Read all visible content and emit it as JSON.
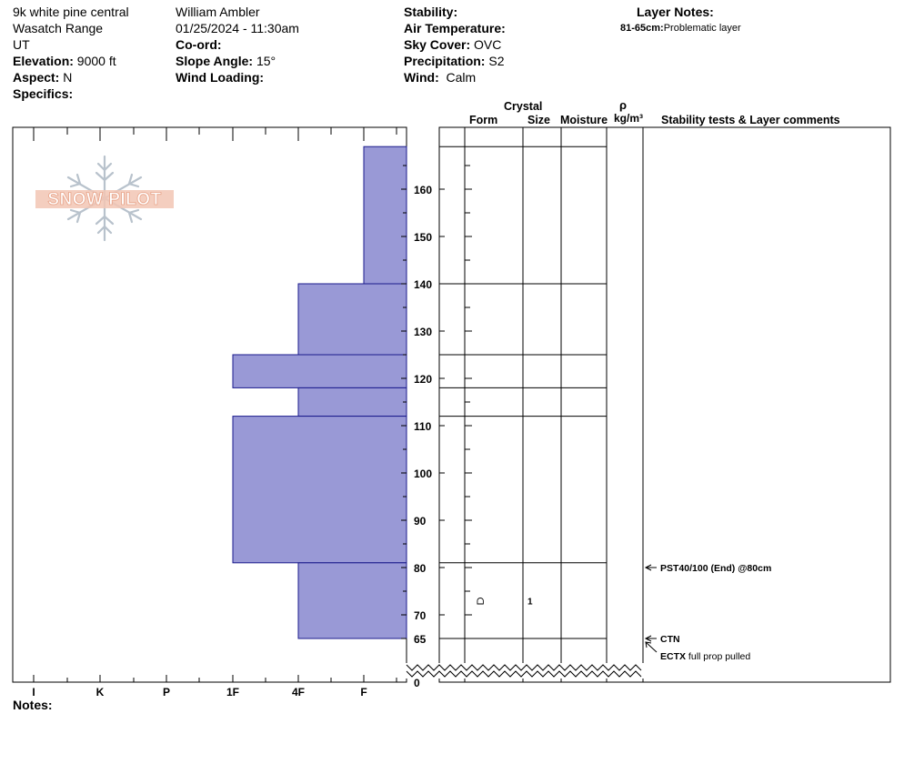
{
  "header": {
    "location": "9k white pine central",
    "range": "Wasatch Range",
    "state": "UT",
    "elevation_label": "Elevation:",
    "elevation_value": "9000 ft",
    "aspect_label": "Aspect:",
    "aspect_value": "N",
    "specifics_label": "Specifics:",
    "observer": "William Ambler",
    "datetime": "01/25/2024 - 11:30am",
    "coord_label": "Co-ord:",
    "slope_label": "Slope Angle:",
    "slope_value": "15°",
    "wind_loading_label": "Wind Loading:",
    "stability_label": "Stability:",
    "air_temp_label": "Air Temperature:",
    "sky_label": "Sky Cover:",
    "sky_value": "OVC",
    "precip_label": "Precipitation:",
    "precip_value": "S2",
    "wind_label": "Wind:",
    "wind_value": "Calm",
    "layer_notes_label": "Layer Notes:",
    "layer_note_range": "81-65cm:",
    "layer_note_text": "Problematic layer"
  },
  "logo": {
    "text": "SNOW PILOT",
    "color": "#e8a48a"
  },
  "columns": {
    "crystal": "Crystal",
    "form": "Form",
    "size": "Size",
    "moisture": "Moisture",
    "rho": "ρ",
    "density_unit": "kg/m³",
    "stability_comments": "Stability tests & Layer comments"
  },
  "notes_label": "Notes:",
  "colors": {
    "bar_fill": "#9999d6",
    "bar_stroke": "#1a1a8c"
  },
  "chart_data": {
    "type": "bar",
    "orientation": "horizontal",
    "x_categories": [
      "I",
      "K",
      "P",
      "1F",
      "4F",
      "F"
    ],
    "y_ticks": [
      160,
      150,
      140,
      130,
      120,
      110,
      100,
      90,
      80,
      70,
      65,
      0
    ],
    "y_range_visible": [
      60,
      172
    ],
    "hardness_layers": [
      {
        "top": 169,
        "bottom": 140,
        "hardness": "F"
      },
      {
        "top": 140,
        "bottom": 125,
        "hardness": "4F"
      },
      {
        "top": 125,
        "bottom": 118,
        "hardness": "1F"
      },
      {
        "top": 118,
        "bottom": 112,
        "hardness": "4F"
      },
      {
        "top": 112,
        "bottom": 81,
        "hardness": "1F"
      },
      {
        "top": 81,
        "bottom": 65,
        "hardness": "4F"
      }
    ],
    "layer_boundaries": [
      169,
      140,
      125,
      118,
      112,
      81,
      65
    ],
    "grain": {
      "depth": 73,
      "form_symbol": "ᗝ",
      "size": "1"
    },
    "stability_tests": [
      {
        "depth": 80,
        "code": "PST40/100 (End) @80cm",
        "comment": ""
      },
      {
        "depth": 65,
        "code": "CTN",
        "comment": ""
      },
      {
        "depth": 59,
        "code": "ECTX",
        "comment": "full prop pulled"
      }
    ]
  }
}
